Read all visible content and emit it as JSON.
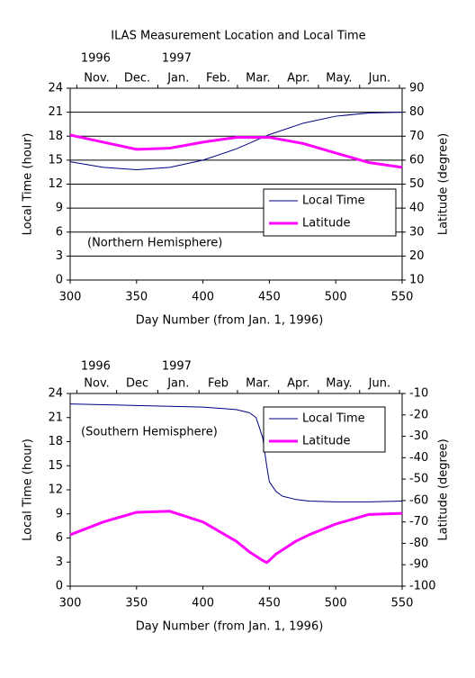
{
  "chart_data": [
    {
      "type": "line",
      "title": "ILAS Measurement Location and Local Time",
      "years": [
        "1996",
        "1997"
      ],
      "months": [
        "Nov.",
        "Dec.",
        "Jan.",
        "Feb.",
        "Mar.",
        "Apr.",
        "May.",
        "Jun."
      ],
      "xlabel": "Day Number (from Jan. 1, 1996)",
      "ylabel": "Local Time (hour)",
      "y2label": "Latitude (degree)",
      "annotation": "(Northern Hemisphere)",
      "x": [
        300,
        325,
        350,
        375,
        400,
        425,
        450,
        475,
        500,
        525,
        550
      ],
      "series": [
        {
          "name": "Local Time",
          "color": "#000080",
          "values": [
            14.8,
            14.1,
            13.8,
            14.1,
            15.0,
            16.4,
            18.2,
            19.6,
            20.5,
            20.9,
            21.0
          ]
        },
        {
          "name": "Latitude",
          "color": "#ff00ff",
          "axis": "y2",
          "values": [
            70.5,
            67.5,
            64.5,
            65.0,
            67.5,
            69.5,
            69.5,
            67.0,
            63.0,
            59.0,
            57.0
          ]
        }
      ],
      "xlim": [
        300,
        550
      ],
      "xticks": [
        300,
        350,
        400,
        450,
        500,
        550
      ],
      "ylim": [
        0,
        24
      ],
      "yticks": [
        0,
        3,
        6,
        9,
        12,
        15,
        18,
        21,
        24
      ],
      "y2lim": [
        10,
        90
      ],
      "y2ticks": [
        10,
        20,
        30,
        40,
        50,
        60,
        70,
        80,
        90
      ],
      "grid": true,
      "legend": "right"
    },
    {
      "type": "line",
      "years": [
        "1996",
        "1997"
      ],
      "months": [
        "Nov.",
        "Dec",
        "Jan.",
        "Feb",
        "Mar.",
        "Apr.",
        "May.",
        "Jun."
      ],
      "xlabel": "Day Number (from Jan. 1, 1996)",
      "ylabel": "Local Time (hour)",
      "y2label": "Latitude (degree)",
      "annotation": "(Southern Hemisphere)",
      "x": [
        300,
        325,
        350,
        375,
        400,
        425,
        435,
        440,
        445,
        448,
        450,
        455,
        460,
        470,
        480,
        500,
        525,
        550
      ],
      "series": [
        {
          "name": "Local Time",
          "color": "#000080",
          "values": [
            22.7,
            22.6,
            22.5,
            22.4,
            22.3,
            22.0,
            21.6,
            21.0,
            18.5,
            15.0,
            13.0,
            11.8,
            11.2,
            10.8,
            10.6,
            10.5,
            10.5,
            10.6
          ]
        },
        {
          "name": "Latitude",
          "color": "#ff00ff",
          "axis": "y2",
          "values": [
            -76,
            -70,
            -65.5,
            -65,
            -70,
            -79,
            -84,
            -86,
            -88,
            -89,
            -88,
            -85,
            -83,
            -79,
            -76,
            -71,
            -66.5,
            -66
          ]
        }
      ],
      "xlim": [
        300,
        550
      ],
      "xticks": [
        300,
        350,
        400,
        450,
        500,
        550
      ],
      "ylim": [
        0,
        24
      ],
      "yticks": [
        0,
        3,
        6,
        9,
        12,
        15,
        18,
        21,
        24
      ],
      "y2lim": [
        -100,
        -10
      ],
      "y2ticks": [
        -100,
        -90,
        -80,
        -70,
        -60,
        -50,
        -40,
        -30,
        -20,
        -10
      ],
      "grid": false,
      "legend": "right"
    }
  ]
}
